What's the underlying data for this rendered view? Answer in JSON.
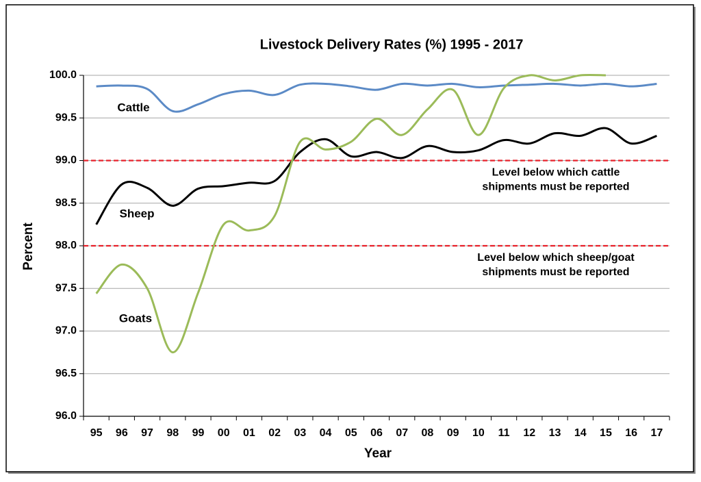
{
  "chart_data": {
    "type": "line",
    "title": "Livestock Delivery Rates (%) 1995 - 2017",
    "xlabel": "Year",
    "ylabel": "Percent",
    "categories": [
      "95",
      "96",
      "97",
      "98",
      "99",
      "00",
      "01",
      "02",
      "03",
      "04",
      "05",
      "06",
      "07",
      "08",
      "09",
      "10",
      "11",
      "12",
      "13",
      "14",
      "15",
      "16",
      "17"
    ],
    "series": [
      {
        "name": "Cattle",
        "color": "#5b8ac6",
        "values": [
          99.87,
          99.88,
          99.84,
          99.58,
          99.66,
          99.78,
          99.82,
          99.77,
          99.89,
          99.9,
          99.87,
          99.83,
          99.9,
          99.88,
          99.9,
          99.86,
          99.88,
          99.89,
          99.9,
          99.88,
          99.9,
          99.87,
          99.9
        ]
      },
      {
        "name": "Sheep",
        "color": "#000000",
        "values": [
          98.25,
          98.72,
          98.68,
          98.47,
          98.67,
          98.7,
          98.74,
          98.76,
          99.1,
          99.25,
          99.05,
          99.1,
          99.03,
          99.17,
          99.1,
          99.12,
          99.24,
          99.2,
          99.32,
          99.29,
          99.38,
          99.2,
          99.29
        ]
      },
      {
        "name": "Goats",
        "color": "#9bbb59",
        "values": [
          97.44,
          97.78,
          97.5,
          96.75,
          97.45,
          98.25,
          98.18,
          98.35,
          99.22,
          99.13,
          99.22,
          99.49,
          99.3,
          99.6,
          99.83,
          99.3,
          99.85,
          100.0,
          99.94,
          100.0,
          100.0,
          null,
          null
        ]
      }
    ],
    "ylim": [
      96,
      100
    ],
    "yticks": [
      {
        "value": 96,
        "label": "96.0"
      },
      {
        "value": 96.5,
        "label": "96.5"
      },
      {
        "value": 97,
        "label": "97.0"
      },
      {
        "value": 97.5,
        "label": "97.5"
      },
      {
        "value": 98,
        "label": "98.0"
      },
      {
        "value": 98.5,
        "label": "98.5"
      },
      {
        "value": 99,
        "label": "99.0"
      },
      {
        "value": 99.5,
        "label": "99.5"
      },
      {
        "value": 100,
        "label": "100.0"
      }
    ],
    "grid": true,
    "smooth": true,
    "reference_lines": [
      {
        "value": 99,
        "color": "#e8202a",
        "label": [
          "Level below which cattle",
          "shipments must be reported"
        ]
      },
      {
        "value": 98,
        "color": "#e8202a",
        "label": [
          "Level below which sheep/goat",
          "shipments must be reported"
        ]
      }
    ]
  }
}
